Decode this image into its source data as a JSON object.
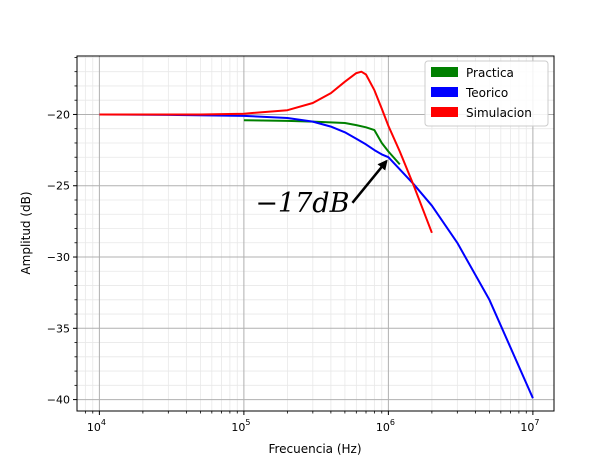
{
  "chart_data": {
    "type": "line",
    "title": "",
    "xlabel": "Frecuencia (Hz)",
    "ylabel": "Amplitud (dB)",
    "xscale": "log",
    "xlim": [
      7000,
      14000000
    ],
    "ylim": [
      -40.8,
      -15.9
    ],
    "grid": true,
    "legend_position": "top-right",
    "x_tick_values": [
      10000,
      100000,
      1000000,
      10000000
    ],
    "x_ticks": [
      {
        "base": "10",
        "exp": "4"
      },
      {
        "base": "10",
        "exp": "5"
      },
      {
        "base": "10",
        "exp": "6"
      },
      {
        "base": "10",
        "exp": "7"
      }
    ],
    "y_tick_values": [
      -40,
      -35,
      -30,
      -25,
      -20
    ],
    "y_ticks": [
      "−40",
      "−35",
      "−30",
      "−25",
      "−20"
    ],
    "series": [
      {
        "name": "Practica",
        "color": "#008000",
        "x": [
          100000,
          200000,
          300000,
          500000,
          600000,
          700000,
          800000,
          900000,
          1000000,
          1200000
        ],
        "y": [
          -20.4,
          -20.45,
          -20.5,
          -20.6,
          -20.75,
          -20.9,
          -21.1,
          -22.0,
          -22.6,
          -23.5
        ]
      },
      {
        "name": "Teorico",
        "color": "#0000ff",
        "x": [
          10000,
          30000,
          100000,
          200000,
          300000,
          400000,
          500000,
          600000,
          700000,
          800000,
          900000,
          1000000,
          1500000,
          2000000,
          3000000,
          5000000,
          10000000
        ],
        "y": [
          -20.0,
          -20.03,
          -20.1,
          -20.25,
          -20.5,
          -20.85,
          -21.25,
          -21.7,
          -22.1,
          -22.5,
          -22.8,
          -23.0,
          -24.9,
          -26.4,
          -29.0,
          -33.0,
          -39.9
        ]
      },
      {
        "name": "Simulacion",
        "color": "#ff0000",
        "x": [
          10000,
          50000,
          100000,
          200000,
          300000,
          400000,
          500000,
          600000,
          650000,
          700000,
          800000,
          900000,
          1000000,
          1200000,
          1500000,
          2000000
        ],
        "y": [
          -20.0,
          -20.0,
          -19.95,
          -19.7,
          -19.2,
          -18.5,
          -17.7,
          -17.1,
          -17.0,
          -17.2,
          -18.3,
          -19.6,
          -20.8,
          -22.6,
          -25.0,
          -28.3
        ]
      }
    ],
    "annotation": {
      "text": "−17dB",
      "text_x": 120000,
      "text_y": -26.2,
      "arrow_to_x": 1000000,
      "arrow_to_y": -23.0
    }
  }
}
